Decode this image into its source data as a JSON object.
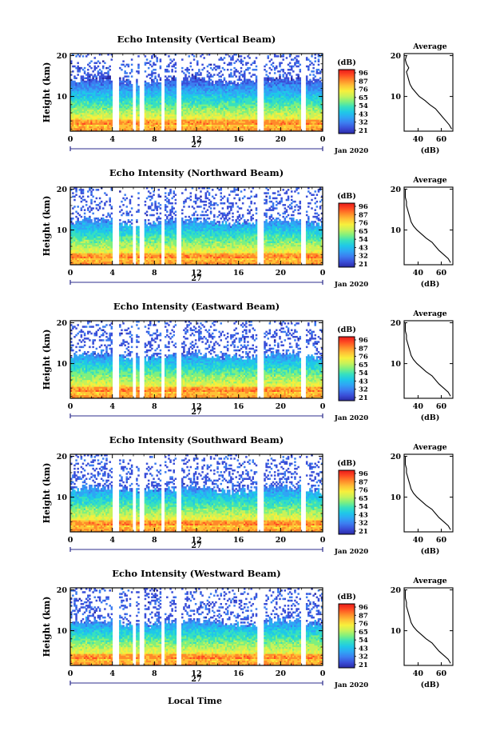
{
  "figure": {
    "x_title": "Local Time",
    "panels_title_suffix": ""
  },
  "colors": {
    "scale": [
      "#2a2aa6",
      "#3a4fd8",
      "#3c7df0",
      "#2fa6f5",
      "#1fc8e8",
      "#37e0bf",
      "#7ef07f",
      "#c7f25a",
      "#f7ef3c",
      "#ffc236",
      "#ff8a2a",
      "#ff4a22",
      "#e81a1a"
    ],
    "no_data": "#ffffff",
    "frame": "#000000",
    "profile": "#000000"
  },
  "chart_data": [
    {
      "type": "heatmap",
      "title": "Echo Intensity (Vertical Beam)",
      "ylabel": "Height (km)",
      "xlabel": "",
      "x_ticks": [
        "0",
        "4",
        "8",
        "12",
        "16",
        "20",
        "0"
      ],
      "y_ticks": [
        "20",
        "10"
      ],
      "xlim": [
        0,
        24
      ],
      "ylim": [
        1.5,
        20.5
      ],
      "day_label": "27",
      "month_label": "Jan 2020",
      "gaps_hours": [
        [
          4.0,
          4.7
        ],
        [
          5.9,
          6.2
        ],
        [
          6.6,
          7.0
        ],
        [
          8.6,
          8.9
        ],
        [
          10.1,
          10.5
        ],
        [
          17.7,
          18.4
        ],
        [
          21.9,
          22.4
        ]
      ],
      "top_km": 20,
      "ragged_km": 14,
      "colorbar": {
        "label": "(dB)",
        "ticks": [
          "96",
          "87",
          "76",
          "65",
          "54",
          "43",
          "32",
          "21"
        ],
        "range": [
          21,
          96
        ]
      },
      "profile": {
        "title": "Average",
        "xlabel": "(dB)",
        "x_ticks": [
          "40",
          "60"
        ],
        "y_ticks": [
          "20",
          "10"
        ],
        "xlim": [
          28,
          70
        ],
        "height_km": [
          2,
          3,
          4,
          5,
          6,
          7,
          8,
          9,
          10,
          11,
          12,
          13,
          14,
          15,
          16,
          17,
          18,
          19,
          20
        ],
        "db": [
          69,
          67,
          64,
          61,
          58,
          55,
          50,
          46,
          41,
          38,
          35,
          33,
          32,
          31,
          30,
          32,
          30,
          29,
          30
        ]
      }
    },
    {
      "type": "heatmap",
      "title": "Echo Intensity (Northward Beam)",
      "ylabel": "Height (km)",
      "xlabel": "",
      "x_ticks": [
        "0",
        "4",
        "8",
        "12",
        "16",
        "20",
        "0"
      ],
      "y_ticks": [
        "20",
        "10"
      ],
      "xlim": [
        0,
        24
      ],
      "ylim": [
        1.5,
        20.5
      ],
      "day_label": "27",
      "month_label": "Jan 2020",
      "gaps_hours": [
        [
          4.0,
          4.7
        ],
        [
          5.9,
          6.2
        ],
        [
          6.6,
          7.0
        ],
        [
          8.6,
          8.9
        ],
        [
          10.1,
          10.5
        ],
        [
          17.7,
          18.4
        ],
        [
          21.9,
          22.4
        ]
      ],
      "top_km": 20,
      "ragged_km": 12,
      "colorbar": {
        "label": "(dB)",
        "ticks": [
          "96",
          "87",
          "76",
          "65",
          "54",
          "43",
          "32",
          "21"
        ],
        "range": [
          21,
          96
        ]
      },
      "profile": {
        "title": "Average",
        "xlabel": "(dB)",
        "x_ticks": [
          "40",
          "60"
        ],
        "y_ticks": [
          "20",
          "10"
        ],
        "xlim": [
          28,
          70
        ],
        "height_km": [
          2,
          3,
          4,
          5,
          6,
          7,
          8,
          9,
          10,
          11,
          12,
          13,
          14,
          15,
          16,
          17,
          18,
          19,
          20
        ],
        "db": [
          68,
          66,
          62,
          58,
          55,
          52,
          47,
          43,
          39,
          36,
          34,
          33,
          32,
          31,
          30,
          30,
          29,
          29,
          29
        ]
      }
    },
    {
      "type": "heatmap",
      "title": "Echo Intensity (Eastward Beam)",
      "ylabel": "Height (km)",
      "xlabel": "",
      "x_ticks": [
        "0",
        "4",
        "8",
        "12",
        "16",
        "20",
        "0"
      ],
      "y_ticks": [
        "20",
        "10"
      ],
      "xlim": [
        0,
        24
      ],
      "ylim": [
        1.5,
        20.5
      ],
      "day_label": "27",
      "month_label": "Jan 2020",
      "gaps_hours": [
        [
          4.0,
          4.7
        ],
        [
          5.9,
          6.2
        ],
        [
          6.6,
          7.0
        ],
        [
          8.6,
          8.9
        ],
        [
          10.1,
          10.5
        ],
        [
          17.7,
          18.4
        ],
        [
          21.9,
          22.4
        ]
      ],
      "top_km": 20,
      "ragged_km": 12,
      "colorbar": {
        "label": "(dB)",
        "ticks": [
          "96",
          "87",
          "76",
          "65",
          "54",
          "43",
          "32",
          "21"
        ],
        "range": [
          21,
          96
        ]
      },
      "profile": {
        "title": "Average",
        "xlabel": "(dB)",
        "x_ticks": [
          "40",
          "60"
        ],
        "y_ticks": [
          "20",
          "10"
        ],
        "xlim": [
          28,
          70
        ],
        "height_km": [
          2,
          3,
          4,
          5,
          6,
          7,
          8,
          9,
          10,
          11,
          12,
          13,
          14,
          15,
          16,
          17,
          18,
          19,
          20
        ],
        "db": [
          68,
          66,
          62,
          58,
          55,
          52,
          47,
          43,
          39,
          36,
          34,
          33,
          32,
          31,
          30,
          30,
          29,
          29,
          29
        ]
      }
    },
    {
      "type": "heatmap",
      "title": "Echo Intensity (Southward Beam)",
      "ylabel": "Height (km)",
      "xlabel": "",
      "x_ticks": [
        "0",
        "4",
        "8",
        "12",
        "16",
        "20",
        "0"
      ],
      "y_ticks": [
        "20",
        "10"
      ],
      "xlim": [
        0,
        24
      ],
      "ylim": [
        1.5,
        20.5
      ],
      "day_label": "27",
      "month_label": "Jan 2020",
      "gaps_hours": [
        [
          4.0,
          4.7
        ],
        [
          5.9,
          6.2
        ],
        [
          6.6,
          7.0
        ],
        [
          8.6,
          8.9
        ],
        [
          10.1,
          10.5
        ],
        [
          17.7,
          18.4
        ],
        [
          21.9,
          22.4
        ]
      ],
      "top_km": 20,
      "ragged_km": 12,
      "colorbar": {
        "label": "(dB)",
        "ticks": [
          "96",
          "87",
          "76",
          "65",
          "54",
          "43",
          "32",
          "21"
        ],
        "range": [
          21,
          96
        ]
      },
      "profile": {
        "title": "Average",
        "xlabel": "(dB)",
        "x_ticks": [
          "40",
          "60"
        ],
        "y_ticks": [
          "20",
          "10"
        ],
        "xlim": [
          28,
          70
        ],
        "height_km": [
          2,
          3,
          4,
          5,
          6,
          7,
          8,
          9,
          10,
          11,
          12,
          13,
          14,
          15,
          16,
          17,
          18,
          19,
          20
        ],
        "db": [
          68,
          66,
          62,
          58,
          55,
          52,
          47,
          43,
          39,
          36,
          34,
          33,
          32,
          31,
          30,
          30,
          29,
          29,
          29
        ]
      }
    },
    {
      "type": "heatmap",
      "title": "Echo Intensity (Westward Beam)",
      "ylabel": "Height (km)",
      "xlabel": "Local Time",
      "x_ticks": [
        "0",
        "4",
        "8",
        "12",
        "16",
        "20",
        "0"
      ],
      "y_ticks": [
        "20",
        "10"
      ],
      "xlim": [
        0,
        24
      ],
      "ylim": [
        1.5,
        20.5
      ],
      "day_label": "27",
      "month_label": "Jan 2020",
      "gaps_hours": [
        [
          4.0,
          4.7
        ],
        [
          5.9,
          6.2
        ],
        [
          6.6,
          7.0
        ],
        [
          8.6,
          8.9
        ],
        [
          10.1,
          10.5
        ],
        [
          17.7,
          18.4
        ],
        [
          21.9,
          22.4
        ]
      ],
      "top_km": 20,
      "ragged_km": 12,
      "colorbar": {
        "label": "(dB)",
        "ticks": [
          "96",
          "87",
          "76",
          "65",
          "54",
          "43",
          "32",
          "21"
        ],
        "range": [
          21,
          96
        ]
      },
      "profile": {
        "title": "Average",
        "xlabel": "(dB)",
        "x_ticks": [
          "40",
          "60"
        ],
        "y_ticks": [
          "20",
          "10"
        ],
        "xlim": [
          28,
          70
        ],
        "height_km": [
          2,
          3,
          4,
          5,
          6,
          7,
          8,
          9,
          10,
          11,
          12,
          13,
          14,
          15,
          16,
          17,
          18,
          19,
          20
        ],
        "db": [
          68,
          66,
          62,
          58,
          55,
          52,
          47,
          43,
          39,
          36,
          34,
          33,
          32,
          31,
          30,
          30,
          29,
          29,
          29
        ]
      }
    }
  ]
}
